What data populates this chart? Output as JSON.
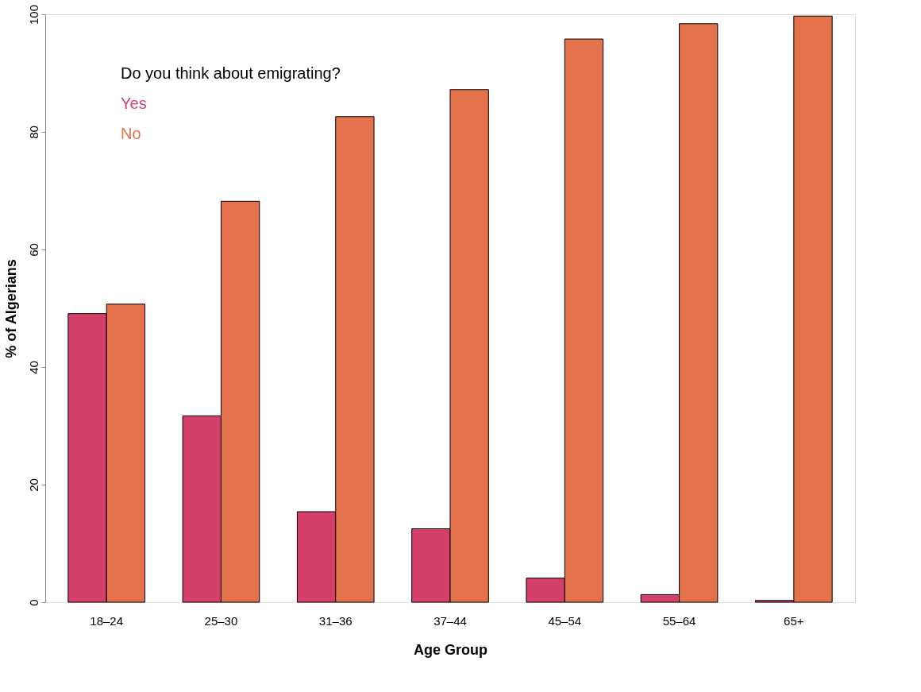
{
  "chart_data": {
    "type": "bar",
    "xlabel": "Age Group",
    "ylabel": "% of Algerians",
    "legend_title": "Do you think about emigrating?",
    "legend": "top left",
    "categories": [
      "18–24",
      "25–30",
      "31–36",
      "37–44",
      "45–54",
      "55–64",
      "65+"
    ],
    "series": [
      {
        "name": "Yes",
        "color": "#d5406b",
        "values": [
          49.1,
          31.7,
          15.4,
          12.5,
          4.1,
          1.3,
          0.3
        ]
      },
      {
        "name": "No",
        "color": "#e2714c",
        "values": [
          50.7,
          68.2,
          82.6,
          87.2,
          95.8,
          98.4,
          99.7
        ]
      }
    ],
    "ylim": [
      0,
      100
    ],
    "yticks": [
      0,
      20,
      40,
      60,
      80,
      100
    ],
    "grid": false
  }
}
